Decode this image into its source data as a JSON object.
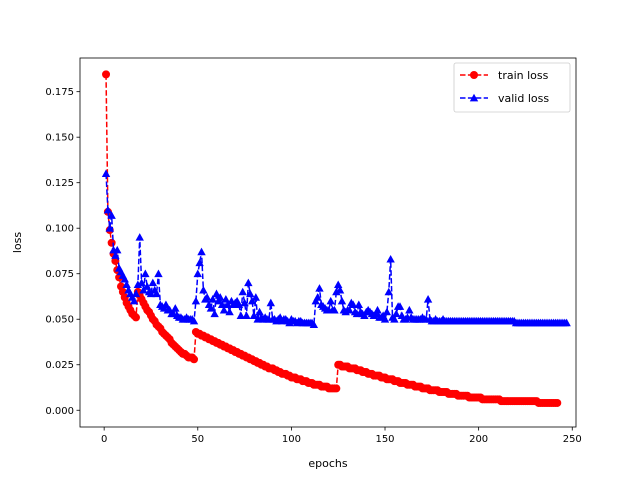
{
  "chart_data": {
    "type": "line",
    "title": "",
    "xlabel": "epochs",
    "ylabel": "loss",
    "xlim": [
      -12.9,
      252
    ],
    "ylim": [
      -0.0092,
      0.1935
    ],
    "xticks": [
      0,
      50,
      100,
      150,
      200,
      250
    ],
    "xtick_labels": [
      "0",
      "50",
      "100",
      "150",
      "200",
      "250"
    ],
    "yticks": [
      0.0,
      0.025,
      0.05,
      0.075,
      0.1,
      0.125,
      0.15,
      0.175
    ],
    "ytick_labels": [
      "0.000",
      "0.025",
      "0.050",
      "0.075",
      "0.100",
      "0.125",
      "0.150",
      "0.175"
    ],
    "grid": false,
    "legend_position": "top-right",
    "series": [
      {
        "name": "train loss",
        "color": "#ff0000",
        "line_style": "dashed",
        "marker": "circle",
        "x_start": 1,
        "values": [
          0.1845,
          0.109,
          0.099,
          0.092,
          0.086,
          0.082,
          0.077,
          0.073,
          0.068,
          0.065,
          0.062,
          0.059,
          0.057,
          0.055,
          0.053,
          0.052,
          0.051,
          0.065,
          0.063,
          0.061,
          0.059,
          0.057,
          0.055,
          0.054,
          0.052,
          0.05,
          0.049,
          0.047,
          0.046,
          0.045,
          0.043,
          0.042,
          0.041,
          0.04,
          0.039,
          0.037,
          0.036,
          0.035,
          0.034,
          0.033,
          0.032,
          0.031,
          0.031,
          0.03,
          0.029,
          0.029,
          0.029,
          0.028,
          0.043,
          0.042,
          0.042,
          0.041,
          0.041,
          0.04,
          0.04,
          0.039,
          0.039,
          0.038,
          0.038,
          0.037,
          0.037,
          0.036,
          0.036,
          0.035,
          0.035,
          0.034,
          0.034,
          0.033,
          0.033,
          0.032,
          0.032,
          0.031,
          0.031,
          0.03,
          0.03,
          0.029,
          0.029,
          0.028,
          0.028,
          0.027,
          0.027,
          0.026,
          0.026,
          0.025,
          0.025,
          0.024,
          0.024,
          0.023,
          0.023,
          0.023,
          0.022,
          0.022,
          0.021,
          0.021,
          0.02,
          0.02,
          0.02,
          0.019,
          0.019,
          0.018,
          0.018,
          0.018,
          0.017,
          0.017,
          0.017,
          0.016,
          0.016,
          0.016,
          0.015,
          0.015,
          0.015,
          0.014,
          0.014,
          0.014,
          0.014,
          0.013,
          0.013,
          0.013,
          0.013,
          0.012,
          0.012,
          0.012,
          0.012,
          0.012,
          0.025,
          0.025,
          0.024,
          0.024,
          0.024,
          0.024,
          0.023,
          0.023,
          0.023,
          0.023,
          0.022,
          0.022,
          0.022,
          0.021,
          0.021,
          0.021,
          0.02,
          0.02,
          0.02,
          0.019,
          0.019,
          0.019,
          0.019,
          0.018,
          0.018,
          0.018,
          0.017,
          0.017,
          0.017,
          0.017,
          0.016,
          0.016,
          0.016,
          0.015,
          0.015,
          0.015,
          0.015,
          0.014,
          0.014,
          0.014,
          0.014,
          0.013,
          0.013,
          0.013,
          0.013,
          0.012,
          0.012,
          0.012,
          0.012,
          0.011,
          0.011,
          0.011,
          0.011,
          0.011,
          0.01,
          0.01,
          0.01,
          0.01,
          0.01,
          0.009,
          0.009,
          0.009,
          0.009,
          0.009,
          0.008,
          0.008,
          0.008,
          0.008,
          0.008,
          0.008,
          0.007,
          0.007,
          0.007,
          0.007,
          0.007,
          0.007,
          0.007,
          0.006,
          0.006,
          0.006,
          0.006,
          0.006,
          0.006,
          0.006,
          0.006,
          0.006,
          0.006,
          0.005,
          0.005,
          0.005,
          0.005,
          0.005,
          0.005,
          0.005,
          0.005,
          0.005,
          0.005,
          0.005,
          0.005,
          0.005,
          0.005,
          0.005,
          0.005,
          0.005,
          0.005,
          0.005,
          0.005,
          0.004,
          0.004,
          0.004,
          0.004,
          0.004,
          0.004,
          0.004,
          0.004,
          0.004,
          0.004,
          0.004
        ]
      },
      {
        "name": "valid loss",
        "color": "#0000ff",
        "line_style": "dashed",
        "marker": "triangle-up",
        "x_start": 1,
        "values": [
          0.13,
          0.11,
          0.1,
          0.107,
          0.088,
          0.085,
          0.088,
          0.078,
          0.076,
          0.074,
          0.072,
          0.069,
          0.066,
          0.064,
          0.062,
          0.06,
          0.064,
          0.069,
          0.095,
          0.07,
          0.066,
          0.075,
          0.068,
          0.065,
          0.064,
          0.07,
          0.066,
          0.064,
          0.075,
          0.058,
          0.057,
          0.056,
          0.058,
          0.055,
          0.055,
          0.053,
          0.053,
          0.056,
          0.052,
          0.051,
          0.051,
          0.05,
          0.05,
          0.051,
          0.05,
          0.05,
          0.05,
          0.049,
          0.06,
          0.075,
          0.081,
          0.087,
          0.066,
          0.061,
          0.062,
          0.058,
          0.056,
          0.061,
          0.053,
          0.064,
          0.06,
          0.062,
          0.058,
          0.055,
          0.061,
          0.058,
          0.054,
          0.06,
          0.058,
          0.059,
          0.06,
          0.058,
          0.052,
          0.065,
          0.059,
          0.052,
          0.07,
          0.064,
          0.06,
          0.052,
          0.062,
          0.05,
          0.054,
          0.051,
          0.05,
          0.051,
          0.05,
          0.05,
          0.059,
          0.05,
          0.05,
          0.049,
          0.05,
          0.051,
          0.049,
          0.05,
          0.05,
          0.049,
          0.048,
          0.05,
          0.049,
          0.049,
          0.048,
          0.049,
          0.049,
          0.048,
          0.048,
          0.048,
          0.048,
          0.048,
          0.048,
          0.047,
          0.06,
          0.062,
          0.067,
          0.058,
          0.057,
          0.056,
          0.055,
          0.055,
          0.06,
          0.055,
          0.055,
          0.065,
          0.069,
          0.066,
          0.06,
          0.055,
          0.054,
          0.055,
          0.055,
          0.059,
          0.058,
          0.054,
          0.053,
          0.058,
          0.054,
          0.053,
          0.052,
          0.054,
          0.055,
          0.054,
          0.053,
          0.052,
          0.053,
          0.055,
          0.051,
          0.051,
          0.052,
          0.05,
          0.054,
          0.065,
          0.083,
          0.051,
          0.05,
          0.053,
          0.057,
          0.057,
          0.052,
          0.05,
          0.05,
          0.051,
          0.055,
          0.051,
          0.05,
          0.05,
          0.05,
          0.05,
          0.05,
          0.051,
          0.05,
          0.05,
          0.061,
          0.05,
          0.049,
          0.049,
          0.05,
          0.049,
          0.049,
          0.049,
          0.05,
          0.049,
          0.049,
          0.049,
          0.049,
          0.049,
          0.049,
          0.049,
          0.049,
          0.049,
          0.049,
          0.049,
          0.049,
          0.049,
          0.049,
          0.049,
          0.049,
          0.049,
          0.049,
          0.049,
          0.049,
          0.049,
          0.049,
          0.049,
          0.049,
          0.049,
          0.049,
          0.049,
          0.049,
          0.049,
          0.049,
          0.049,
          0.049,
          0.049,
          0.049,
          0.049,
          0.049,
          0.049,
          0.049,
          0.048,
          0.048,
          0.048,
          0.048,
          0.048,
          0.048,
          0.048,
          0.048,
          0.048,
          0.048,
          0.048,
          0.048,
          0.048,
          0.048,
          0.048,
          0.048,
          0.048,
          0.048,
          0.048,
          0.048,
          0.048,
          0.048,
          0.048,
          0.048,
          0.048,
          0.048,
          0.048,
          0.048
        ]
      }
    ]
  }
}
